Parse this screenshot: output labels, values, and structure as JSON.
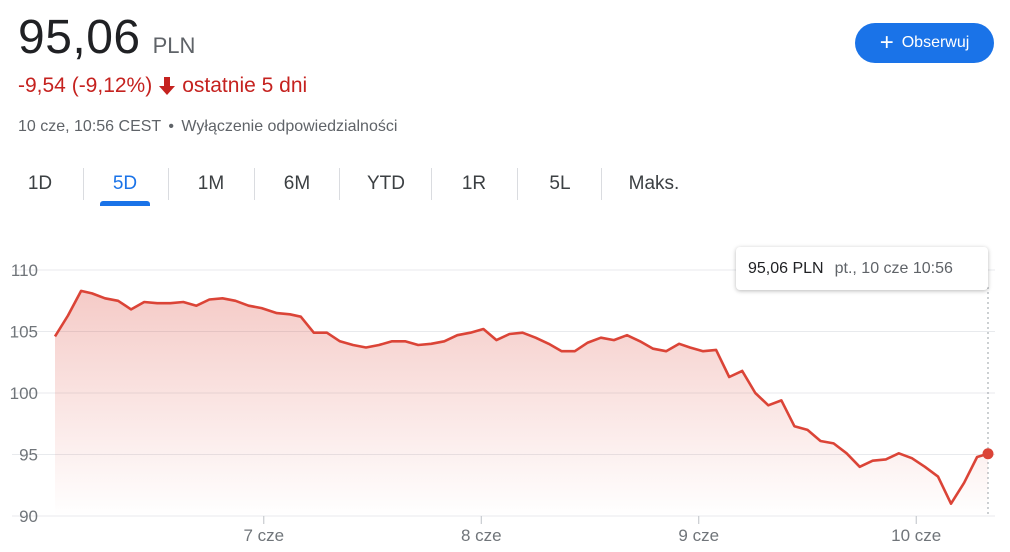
{
  "quote": {
    "price": "95,06",
    "currency": "PLN",
    "change": "-9,54 (-9,12%)",
    "period": "ostatnie 5 dni",
    "timestamp": "10 cze, 10:56 CEST",
    "separator": "•",
    "disclaimer": "Wyłączenie odpowiedzialności"
  },
  "follow_button": {
    "label": "Obserwuj",
    "icon": "plus-icon"
  },
  "tabs": [
    {
      "label": "1D",
      "active": false
    },
    {
      "label": "5D",
      "active": true
    },
    {
      "label": "1M",
      "active": false
    },
    {
      "label": "6M",
      "active": false
    },
    {
      "label": "YTD",
      "active": false
    },
    {
      "label": "1R",
      "active": false
    },
    {
      "label": "5L",
      "active": false
    },
    {
      "label": "Maks.",
      "active": false
    }
  ],
  "tooltip": {
    "price": "95,06 PLN",
    "date": "pt., 10 cze 10:56"
  },
  "colors": {
    "negative": "#c5221f",
    "line": "#db4437",
    "accent": "#1a73e8"
  },
  "chart_data": {
    "type": "area",
    "ylim": [
      90,
      110
    ],
    "y_ticks": [
      110,
      105,
      100,
      95,
      90
    ],
    "x_ticks": [
      {
        "label": "7 cze",
        "x": 0.96
      },
      {
        "label": "8 cze",
        "x": 1.96
      },
      {
        "label": "9 cze",
        "x": 2.96
      },
      {
        "label": "10 cze",
        "x": 3.96
      }
    ],
    "xlim": [
      0,
      4.29
    ],
    "grid": true,
    "series": [
      {
        "points": [
          [
            0.0,
            104.6
          ],
          [
            0.06,
            106.3
          ],
          [
            0.12,
            108.3
          ],
          [
            0.17,
            108.1
          ],
          [
            0.23,
            107.7
          ],
          [
            0.29,
            107.5
          ],
          [
            0.35,
            106.8
          ],
          [
            0.41,
            107.4
          ],
          [
            0.47,
            107.3
          ],
          [
            0.53,
            107.3
          ],
          [
            0.59,
            107.4
          ],
          [
            0.65,
            107.1
          ],
          [
            0.71,
            107.6
          ],
          [
            0.77,
            107.7
          ],
          [
            0.83,
            107.5
          ],
          [
            0.89,
            107.1
          ],
          [
            0.95,
            106.9
          ],
          [
            1.02,
            106.5
          ],
          [
            1.08,
            106.4
          ],
          [
            1.13,
            106.2
          ],
          [
            1.19,
            104.9
          ],
          [
            1.25,
            104.9
          ],
          [
            1.31,
            104.2
          ],
          [
            1.37,
            103.9
          ],
          [
            1.43,
            103.7
          ],
          [
            1.49,
            103.9
          ],
          [
            1.55,
            104.2
          ],
          [
            1.61,
            104.2
          ],
          [
            1.67,
            103.9
          ],
          [
            1.73,
            104.0
          ],
          [
            1.79,
            104.2
          ],
          [
            1.85,
            104.7
          ],
          [
            1.91,
            104.9
          ],
          [
            1.97,
            105.2
          ],
          [
            2.03,
            104.3
          ],
          [
            2.09,
            104.8
          ],
          [
            2.15,
            104.9
          ],
          [
            2.21,
            104.5
          ],
          [
            2.27,
            104.0
          ],
          [
            2.33,
            103.4
          ],
          [
            2.39,
            103.4
          ],
          [
            2.45,
            104.1
          ],
          [
            2.51,
            104.5
          ],
          [
            2.57,
            104.3
          ],
          [
            2.63,
            104.7
          ],
          [
            2.69,
            104.2
          ],
          [
            2.75,
            103.6
          ],
          [
            2.81,
            103.4
          ],
          [
            2.87,
            104.0
          ],
          [
            2.92,
            103.7
          ],
          [
            2.98,
            103.4
          ],
          [
            3.04,
            103.5
          ],
          [
            3.1,
            101.3
          ],
          [
            3.16,
            101.8
          ],
          [
            3.22,
            100.0
          ],
          [
            3.28,
            99.0
          ],
          [
            3.34,
            99.4
          ],
          [
            3.4,
            97.3
          ],
          [
            3.46,
            97.0
          ],
          [
            3.52,
            96.1
          ],
          [
            3.58,
            95.9
          ],
          [
            3.64,
            95.1
          ],
          [
            3.7,
            94.0
          ],
          [
            3.76,
            94.5
          ],
          [
            3.82,
            94.6
          ],
          [
            3.88,
            95.1
          ],
          [
            3.94,
            94.7
          ],
          [
            4.0,
            94.0
          ],
          [
            4.06,
            93.2
          ],
          [
            4.12,
            91.0
          ],
          [
            4.18,
            92.7
          ],
          [
            4.24,
            94.8
          ],
          [
            4.29,
            95.06
          ]
        ]
      }
    ],
    "last_point": [
      4.29,
      95.06
    ]
  }
}
